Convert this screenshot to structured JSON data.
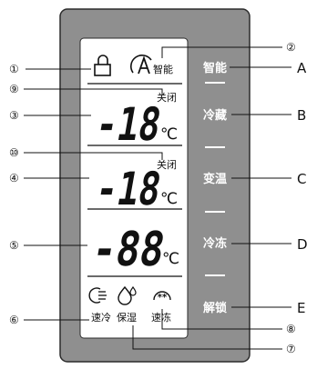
{
  "panel": {
    "colors": {
      "bezel": "#8f8f8f",
      "bezel_stroke": "#2b2b2b",
      "display": "#ffffff",
      "segment": "#111111",
      "button_text": "#ffffff",
      "lines": "#111111"
    }
  },
  "display": {
    "lock_icon": "padlock-icon",
    "smart_icon": "smart-mode-icon",
    "smart_label": "智能",
    "zone1_digits": "-18",
    "zone1_unit": "℃",
    "zone1_off_label": "关闭",
    "zone2_digits": "-18",
    "zone2_unit": "℃",
    "zone2_off_label": "关闭",
    "zone3_digits": "-88",
    "zone3_unit": "℃",
    "quick_cool_icon": "quick-cool-icon",
    "quick_cool_label": "速冷",
    "humidity_icon": "humidity-icon",
    "humidity_label": "保湿",
    "quick_freeze_icon": "quick-freeze-icon",
    "quick_freeze_label": "速冻"
  },
  "buttons": {
    "smart": "智能",
    "fridge": "冷藏",
    "variable": "变温",
    "freezer": "冷冻",
    "unlock": "解锁"
  },
  "callouts_left": [
    "①",
    "⑨",
    "③",
    "⑩",
    "④",
    "⑤",
    "⑥"
  ],
  "callouts_right": [
    "②",
    "⑧",
    "⑦"
  ],
  "letters": [
    "A",
    "B",
    "C",
    "D",
    "E"
  ]
}
